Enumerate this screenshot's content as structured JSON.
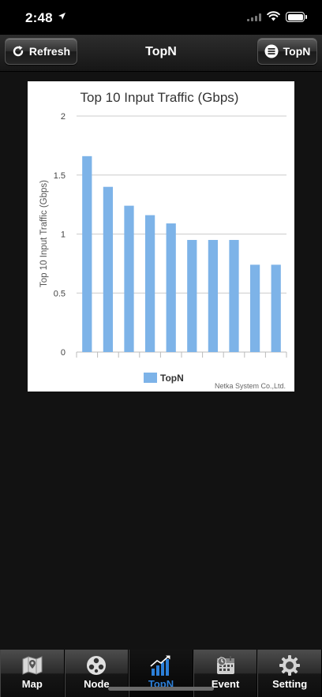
{
  "status": {
    "time": "2:48"
  },
  "navbar": {
    "refresh_label": "Refresh",
    "title": "TopN",
    "topn_label": "TopN"
  },
  "chart_data": {
    "type": "bar",
    "title": "Top 10 Input Traffic (Gbps)",
    "ylabel": "Top 10 Input Traffic (Gbps)",
    "xlabel": "",
    "ylim": [
      0,
      2
    ],
    "yticks": [
      "0",
      "0.5",
      "1",
      "1.5",
      "2"
    ],
    "categories": [
      "",
      "",
      "",
      "",
      "",
      "",
      "",
      "",
      "",
      ""
    ],
    "series": [
      {
        "name": "TopN",
        "color": "#7db3e8",
        "values": [
          1.66,
          1.4,
          1.24,
          1.16,
          1.09,
          0.95,
          0.95,
          0.95,
          0.74,
          0.74
        ]
      }
    ],
    "legend": "bottom-center",
    "grid": true,
    "credit": "Netka System Co.,Ltd."
  },
  "tabbar": {
    "tabs": [
      {
        "label": "Map",
        "icon": "map-icon"
      },
      {
        "label": "Node",
        "icon": "node-icon"
      },
      {
        "label": "TopN",
        "icon": "topn-chart-icon",
        "active": true
      },
      {
        "label": "Event",
        "icon": "event-icon"
      },
      {
        "label": "Setting",
        "icon": "gear-icon"
      }
    ]
  }
}
